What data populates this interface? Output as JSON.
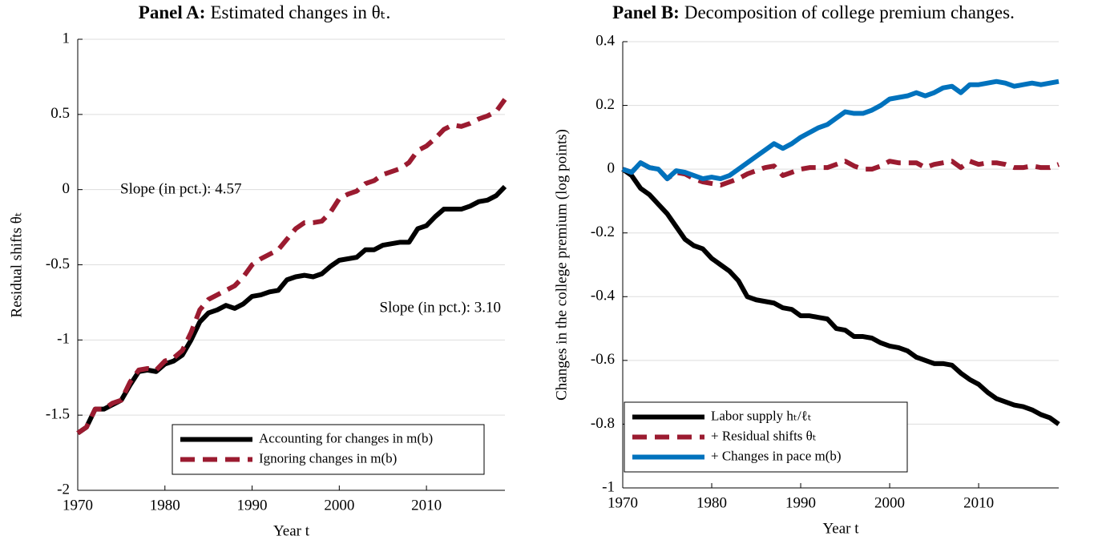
{
  "chart_data": [
    {
      "type": "line",
      "title_prefix": "Panel A:",
      "title": "Estimated changes in θₜ.",
      "xlabel": "Year t",
      "ylabel": "Residual shifts θₜ",
      "x": [
        1970,
        1971,
        1972,
        1973,
        1974,
        1975,
        1976,
        1977,
        1978,
        1979,
        1980,
        1981,
        1982,
        1983,
        1984,
        1985,
        1986,
        1987,
        1988,
        1989,
        1990,
        1991,
        1992,
        1993,
        1994,
        1995,
        1996,
        1997,
        1998,
        1999,
        2000,
        2001,
        2002,
        2003,
        2004,
        2005,
        2006,
        2007,
        2008,
        2009,
        2010,
        2011,
        2012,
        2013,
        2014,
        2015,
        2016,
        2017,
        2018,
        2019
      ],
      "series": [
        {
          "name": "Accounting for changes in m(b)",
          "color": "#000000",
          "linestyle": "solid",
          "values": [
            -1.62,
            -1.58,
            -1.46,
            -1.46,
            -1.43,
            -1.4,
            -1.3,
            -1.21,
            -1.2,
            -1.21,
            -1.16,
            -1.14,
            -1.1,
            -1.0,
            -0.88,
            -0.82,
            -0.8,
            -0.77,
            -0.79,
            -0.76,
            -0.71,
            -0.7,
            -0.68,
            -0.67,
            -0.6,
            -0.58,
            -0.57,
            -0.58,
            -0.56,
            -0.51,
            -0.47,
            -0.46,
            -0.45,
            -0.4,
            -0.4,
            -0.37,
            -0.36,
            -0.35,
            -0.35,
            -0.26,
            -0.24,
            -0.18,
            -0.13,
            -0.13,
            -0.13,
            -0.11,
            -0.08,
            -0.07,
            -0.04,
            0.02
          ]
        },
        {
          "name": "Ignoring changes in m(b)",
          "color": "#9b1b30",
          "linestyle": "dashed",
          "values": [
            -1.62,
            -1.58,
            -1.46,
            -1.46,
            -1.42,
            -1.4,
            -1.28,
            -1.2,
            -1.19,
            -1.2,
            -1.14,
            -1.12,
            -1.07,
            -0.95,
            -0.8,
            -0.73,
            -0.7,
            -0.67,
            -0.64,
            -0.58,
            -0.5,
            -0.46,
            -0.43,
            -0.4,
            -0.33,
            -0.26,
            -0.22,
            -0.22,
            -0.21,
            -0.15,
            -0.06,
            -0.03,
            -0.01,
            0.04,
            0.06,
            0.1,
            0.12,
            0.14,
            0.18,
            0.26,
            0.29,
            0.34,
            0.4,
            0.43,
            0.42,
            0.44,
            0.47,
            0.49,
            0.52,
            0.6
          ]
        }
      ],
      "annotations": [
        {
          "text": "Slope (in pct.): 4.57",
          "color": "#9b1b30"
        },
        {
          "text": "Slope (in pct.): 3.10",
          "color": "#000000"
        }
      ],
      "xlim": [
        1970,
        2019
      ],
      "xticks": [
        1970,
        1980,
        1990,
        2000,
        2010
      ],
      "ylim": [
        -2,
        1
      ],
      "yticks": [
        -2,
        -1.5,
        -1,
        -0.5,
        0,
        0.5,
        1
      ],
      "grid": true,
      "legend": "lower right"
    },
    {
      "type": "line",
      "title_prefix": "Panel B:",
      "title": "Decomposition of college premium changes.",
      "xlabel": "Year t",
      "ylabel": "Changes in the college premium (log points)",
      "x": [
        1970,
        1971,
        1972,
        1973,
        1974,
        1975,
        1976,
        1977,
        1978,
        1979,
        1980,
        1981,
        1982,
        1983,
        1984,
        1985,
        1986,
        1987,
        1988,
        1989,
        1990,
        1991,
        1992,
        1993,
        1994,
        1995,
        1996,
        1997,
        1998,
        1999,
        2000,
        2001,
        2002,
        2003,
        2004,
        2005,
        2006,
        2007,
        2008,
        2009,
        2010,
        2011,
        2012,
        2013,
        2014,
        2015,
        2016,
        2017,
        2018,
        2019
      ],
      "series": [
        {
          "name": "Labor supply hₜ/ℓₜ",
          "color": "#000000",
          "linestyle": "solid",
          "values": [
            0,
            -0.02,
            -0.06,
            -0.08,
            -0.11,
            -0.14,
            -0.18,
            -0.22,
            -0.24,
            -0.25,
            -0.28,
            -0.3,
            -0.32,
            -0.35,
            -0.4,
            -0.41,
            -0.415,
            -0.42,
            -0.435,
            -0.44,
            -0.46,
            -0.46,
            -0.465,
            -0.47,
            -0.5,
            -0.505,
            -0.525,
            -0.525,
            -0.53,
            -0.545,
            -0.555,
            -0.56,
            -0.57,
            -0.59,
            -0.6,
            -0.61,
            -0.61,
            -0.615,
            -0.64,
            -0.66,
            -0.675,
            -0.7,
            -0.72,
            -0.73,
            -0.74,
            -0.745,
            -0.755,
            -0.77,
            -0.78,
            -0.8
          ]
        },
        {
          "name": "+ Residual shifts θₜ",
          "color": "#9b1b30",
          "linestyle": "dashed",
          "values": [
            0,
            -0.01,
            0.02,
            0.005,
            0,
            -0.03,
            -0.01,
            -0.015,
            -0.03,
            -0.04,
            -0.045,
            -0.05,
            -0.04,
            -0.03,
            -0.015,
            -0.005,
            0.005,
            0.01,
            -0.02,
            -0.01,
            0,
            0.005,
            0.005,
            0.005,
            0.015,
            0.025,
            0.01,
            0,
            0,
            0.01,
            0.025,
            0.02,
            0.02,
            0.02,
            0.005,
            0.015,
            0.02,
            0.025,
            0.005,
            0.025,
            0.015,
            0.02,
            0.02,
            0.015,
            0.005,
            0.005,
            0.01,
            0.005,
            0.005,
            0.015
          ]
        },
        {
          "name": "+ Changes in pace m(b)",
          "color": "#0072bd",
          "linestyle": "solid",
          "values": [
            0,
            -0.01,
            0.02,
            0.005,
            0,
            -0.03,
            -0.005,
            -0.01,
            -0.02,
            -0.03,
            -0.025,
            -0.03,
            -0.02,
            0,
            0.02,
            0.04,
            0.06,
            0.08,
            0.065,
            0.08,
            0.1,
            0.115,
            0.13,
            0.14,
            0.16,
            0.18,
            0.175,
            0.175,
            0.185,
            0.2,
            0.22,
            0.225,
            0.23,
            0.24,
            0.23,
            0.24,
            0.255,
            0.26,
            0.24,
            0.265,
            0.265,
            0.27,
            0.275,
            0.27,
            0.26,
            0.265,
            0.27,
            0.265,
            0.27,
            0.275
          ]
        }
      ],
      "xlim": [
        1970,
        2019
      ],
      "xticks": [
        1970,
        1980,
        1990,
        2000,
        2010
      ],
      "ylim": [
        -1,
        0.4
      ],
      "yticks": [
        -1,
        -0.8,
        -0.6,
        -0.4,
        -0.2,
        0,
        0.2,
        0.4
      ],
      "grid": true,
      "legend": "lower left"
    }
  ]
}
